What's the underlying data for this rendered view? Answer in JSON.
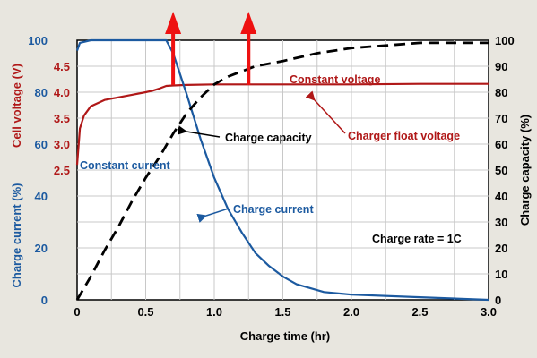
{
  "chart_data": {
    "type": "line",
    "title": "",
    "xlabel": "Charge time (hr)",
    "xlim": [
      0,
      3.0
    ],
    "x_ticks": [
      "0",
      "0.5",
      "1.0",
      "1.5",
      "2.0",
      "2.5",
      "3.0"
    ],
    "grid": true,
    "axes": {
      "voltage": {
        "label": "Cell voltage (V)",
        "range": [
          0,
          5
        ],
        "ticks": [
          "2.5",
          "3.0",
          "3.5",
          "4.0",
          "4.5"
        ],
        "color": "#b01818"
      },
      "current": {
        "label": "Charge current (%)",
        "range": [
          0,
          100
        ],
        "ticks": [
          "0",
          "20",
          "40",
          "60",
          "80",
          "100"
        ],
        "color": "#1c5aa0"
      },
      "capacity": {
        "label": "Charge capacity (%)",
        "range": [
          0,
          100
        ],
        "ticks": [
          "0",
          "10",
          "20",
          "30",
          "40",
          "50",
          "60",
          "70",
          "80",
          "90",
          "100"
        ],
        "color": "#000000"
      }
    },
    "series": [
      {
        "axis": "voltage",
        "color": "#b01818",
        "style": "solid",
        "x": [
          0.0,
          0.02,
          0.05,
          0.1,
          0.2,
          0.3,
          0.4,
          0.5,
          0.55,
          0.6,
          0.65,
          0.7,
          0.8,
          1.0,
          1.5,
          2.0,
          2.5,
          3.0
        ],
        "y": [
          2.6,
          3.3,
          3.55,
          3.73,
          3.85,
          3.9,
          3.95,
          4.0,
          4.03,
          4.07,
          4.12,
          4.13,
          4.14,
          4.15,
          4.15,
          4.15,
          4.16,
          4.16
        ]
      },
      {
        "axis": "current",
        "color": "#1c5aa0",
        "style": "solid",
        "x": [
          0.0,
          0.02,
          0.1,
          0.5,
          0.65,
          0.7,
          0.8,
          0.9,
          1.0,
          1.1,
          1.2,
          1.3,
          1.4,
          1.5,
          1.6,
          1.8,
          2.0,
          2.5,
          3.0
        ],
        "y": [
          96,
          99,
          100,
          100,
          100,
          95,
          79,
          62,
          47,
          35,
          26,
          18,
          13,
          9,
          6,
          3,
          2,
          1,
          0
        ]
      },
      {
        "axis": "capacity",
        "color": "#000000",
        "style": "dashed",
        "x": [
          0.0,
          0.1,
          0.2,
          0.3,
          0.4,
          0.5,
          0.6,
          0.7,
          0.8,
          0.9,
          1.0,
          1.1,
          1.2,
          1.3,
          1.4,
          1.5,
          1.75,
          2.0,
          2.5,
          3.0
        ],
        "y": [
          0,
          9,
          19,
          28,
          38,
          47,
          55,
          64,
          72,
          78,
          83,
          86,
          88,
          90,
          91,
          92,
          95,
          97,
          99,
          99
        ]
      }
    ],
    "annotations": {
      "constant_voltage": "Constant voltage",
      "charger_float_voltage": "Charger float voltage",
      "charge_capacity": "Charge capacity",
      "constant_current": "Constant current",
      "charge_current": "Charge current",
      "charge_rate": "Charge rate = 1C"
    },
    "markers": {
      "up_arrows_at_x": [
        0.7,
        1.25
      ],
      "color": "#ee1111"
    }
  }
}
